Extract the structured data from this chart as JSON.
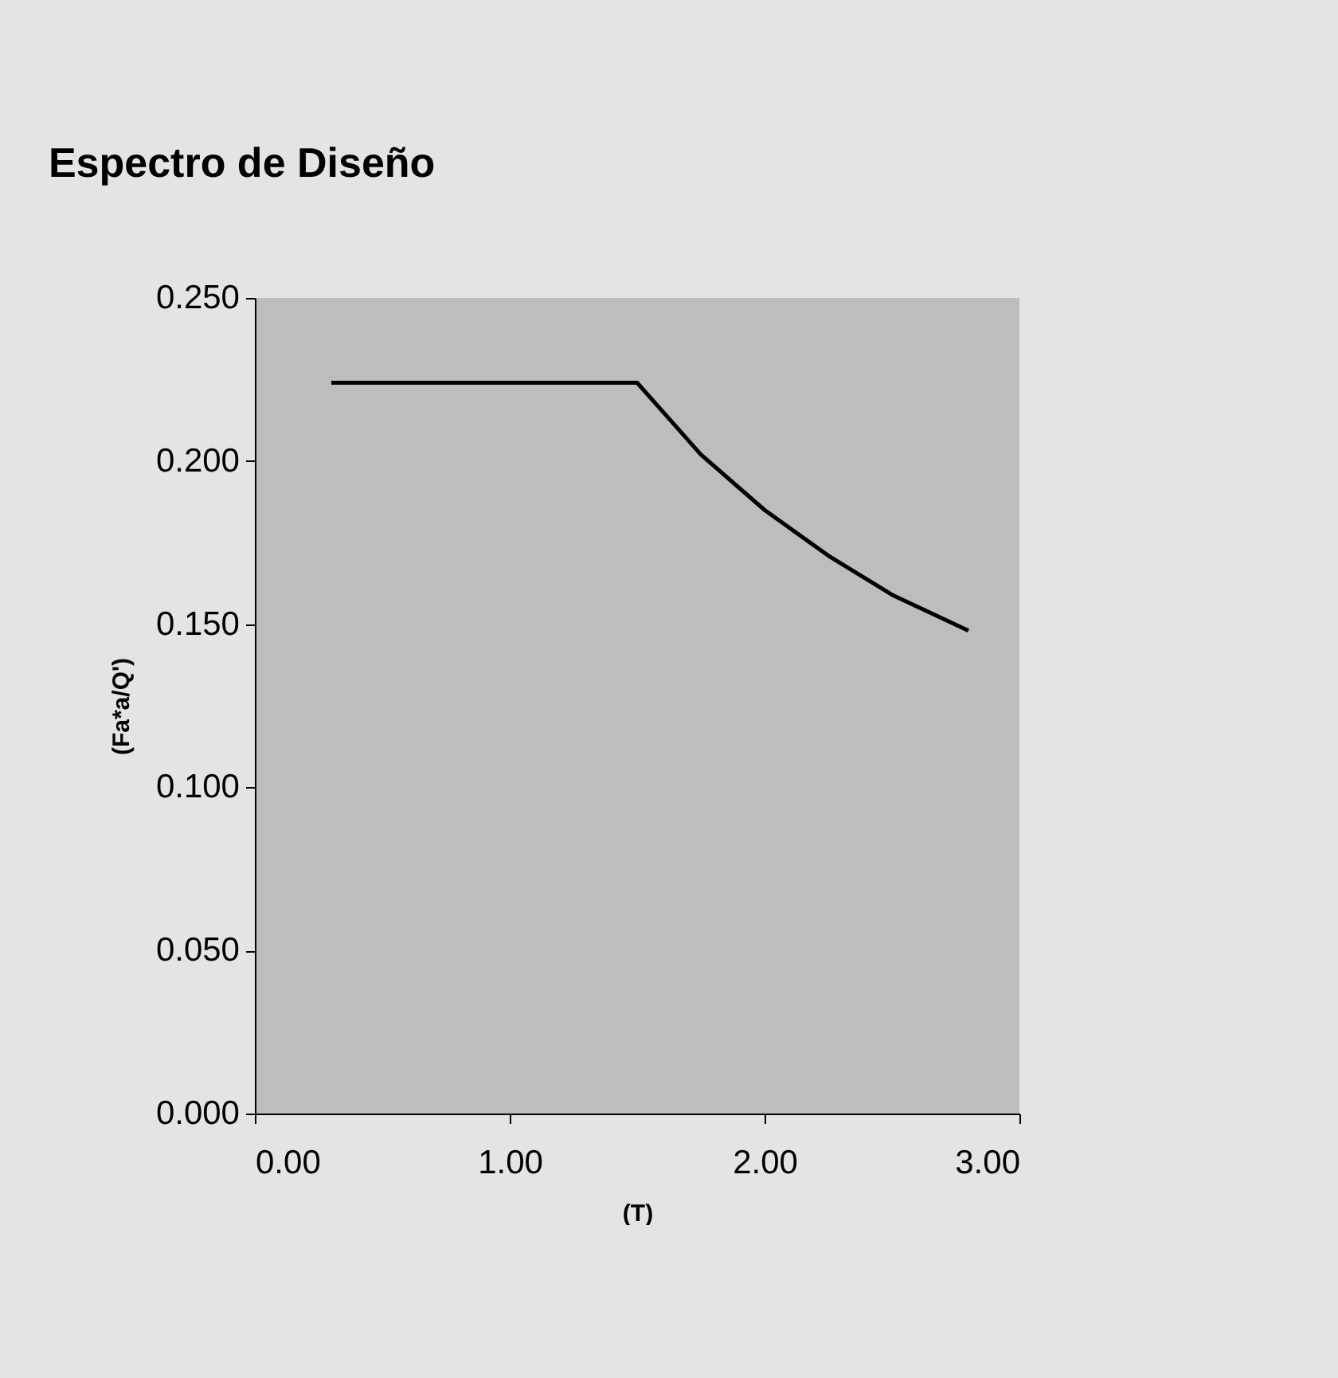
{
  "chart_data": {
    "type": "line",
    "title": "Espectro de Diseño",
    "xlabel": "(T)",
    "ylabel": "(Fa*a/Q')",
    "x": [
      0.3,
      1.5,
      1.75,
      2.0,
      2.25,
      2.5,
      2.8
    ],
    "series": [
      {
        "color": "#000000",
        "values": [
          0.224,
          0.224,
          0.202,
          0.185,
          0.171,
          0.159,
          0.148
        ]
      }
    ],
    "xlim": [
      0,
      3
    ],
    "xticks": [
      {
        "value": 0,
        "label": "0.00"
      },
      {
        "value": 1,
        "label": "1.00"
      },
      {
        "value": 2,
        "label": "2.00"
      },
      {
        "value": 3,
        "label": "3.00"
      }
    ],
    "ylim": [
      0,
      0.25
    ],
    "yticks": [
      {
        "value": 0,
        "label": "0.000"
      },
      {
        "value": 0.05,
        "label": "0.050"
      },
      {
        "value": 0.1,
        "label": "0.100"
      },
      {
        "value": 0.15,
        "label": "0.150"
      },
      {
        "value": 0.2,
        "label": "0.200"
      },
      {
        "value": 0.25,
        "label": "0.250"
      }
    ],
    "grid": false,
    "marker": "none",
    "line_style": "solid"
  }
}
